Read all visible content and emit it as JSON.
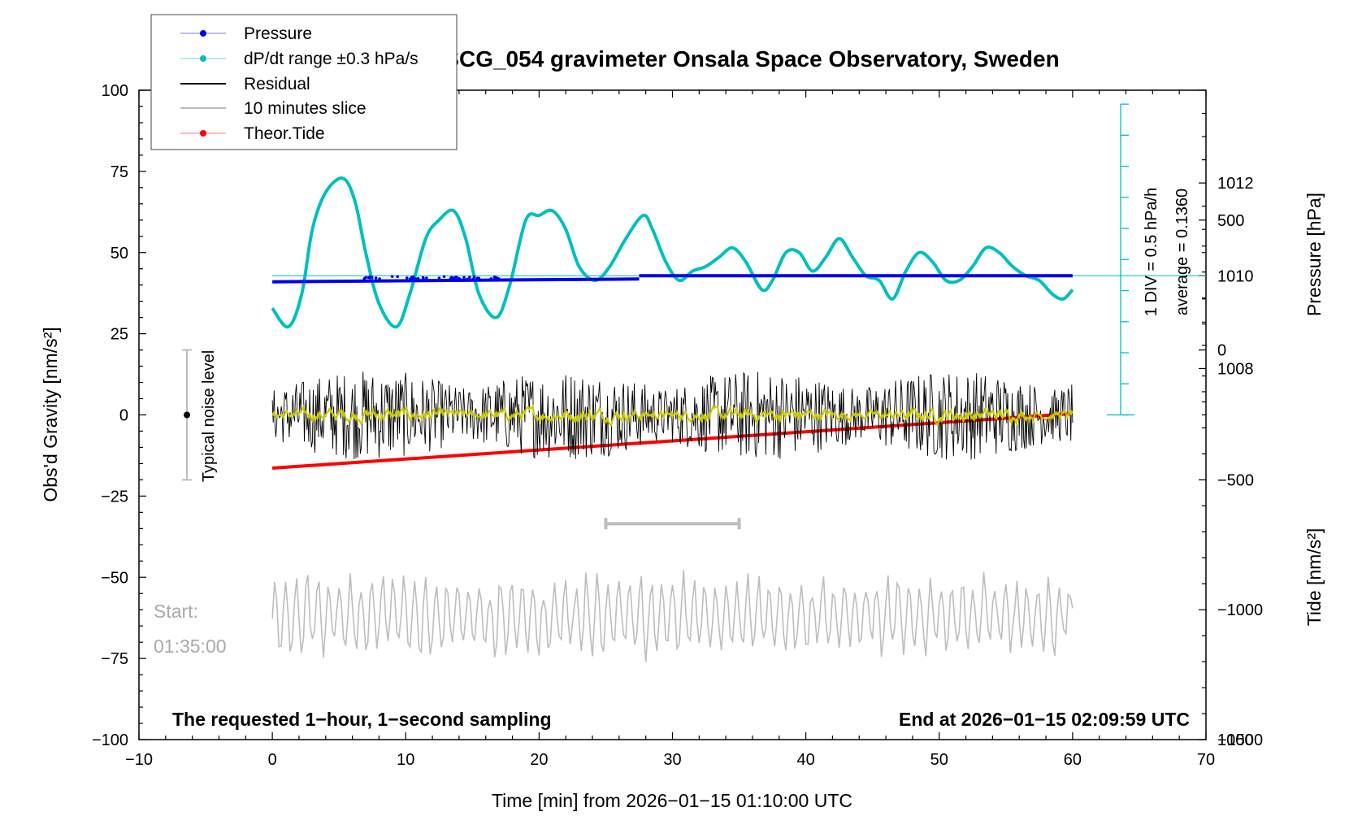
{
  "chart_data": {
    "type": "line",
    "title": "SCG_054 gravimeter Onsala Space Observatory, Sweden",
    "xlabel": "Time [min] from 2026−01−15 01:10:00 UTC",
    "ylabel_left": "Obs'd Gravity [nm/s²]",
    "ylabel_pressure": "Pressure [hPa]",
    "ylabel_tide": "Tide [nm/s²]",
    "xlim": [
      -10,
      70
    ],
    "ylim": [
      -100,
      100
    ],
    "pressure_range": [
      1000,
      1014
    ],
    "tide_range": [
      -1500,
      1000
    ],
    "x_ticks": [
      "−10",
      "0",
      "10",
      "20",
      "30",
      "40",
      "50",
      "60",
      "70"
    ],
    "y_ticks": [
      "100",
      "75",
      "50",
      "25",
      "0",
      "−25",
      "−50",
      "−75",
      "−100"
    ],
    "pressure_ticks": [
      "1012",
      "1010",
      "1008",
      "1000"
    ],
    "tide_ticks": [
      "500",
      "0",
      "−500",
      "−1000",
      "−1500"
    ],
    "legend": {
      "position": "top-left",
      "entries": [
        {
          "label": "Pressure",
          "color": "#0000ee",
          "marker": true
        },
        {
          "label": "dP/dt range ±0.3 hPa/s",
          "color": "#00bfbf",
          "marker": true
        },
        {
          "label": "Residual",
          "color": "#000000",
          "marker": false
        },
        {
          "label": "10 minutes slice",
          "color": "#bdbdbd",
          "marker": false
        },
        {
          "label": "Theor.Tide",
          "color": "#ff0000",
          "marker": true
        }
      ]
    },
    "annotations": {
      "noise_label": "Typical noise level",
      "noise_range": [
        -20,
        20
      ],
      "slice_window": [
        25,
        35
      ],
      "start_label": "Start:",
      "start_time": "01:35:00",
      "div_label": "1 DIV = 0.5 hPa/h",
      "average_label": "average = 0.1360",
      "footer_left": "The requested 1−hour, 1−second sampling",
      "footer_right": "End at 2026−01−15 02:09:59 UTC"
    },
    "series": [
      {
        "name": "dP/dt",
        "color": "#00bfbf",
        "x": [
          0,
          1.2,
          2.2,
          3,
          4,
          5.3,
          6.2,
          7,
          8,
          9.3,
          10.3,
          11.5,
          12.5,
          13.6,
          14.5,
          15.5,
          16.8,
          17.8,
          19,
          20,
          21,
          22,
          23,
          24.2,
          25.3,
          26.5,
          27.8,
          28.5,
          29.5,
          30.5,
          31.5,
          32.5,
          33.5,
          34.5,
          35.5,
          36.7,
          37.5,
          38.5,
          39.5,
          40.5,
          41.5,
          42.5,
          43.5,
          44.5,
          45.5,
          46.5,
          47.5,
          48.5,
          49.5,
          50.5,
          51.5,
          52.5,
          53.5,
          54.5,
          55.5,
          56.5,
          57.5,
          58.5,
          59.3,
          60
        ],
        "y": [
          1009.3,
          1008.9,
          1009.6,
          1011.0,
          1011.8,
          1012.1,
          1011.6,
          1010.5,
          1009.4,
          1008.9,
          1009.6,
          1010.8,
          1011.2,
          1011.4,
          1010.8,
          1009.6,
          1009.1,
          1009.8,
          1011.2,
          1011.3,
          1011.4,
          1011.0,
          1010.2,
          1009.9,
          1010.2,
          1010.8,
          1011.3,
          1011.0,
          1010.3,
          1009.9,
          1010.1,
          1010.2,
          1010.4,
          1010.6,
          1010.3,
          1009.7,
          1009.9,
          1010.5,
          1010.5,
          1010.1,
          1010.4,
          1010.8,
          1010.4,
          1010.0,
          1009.9,
          1009.5,
          1010.1,
          1010.5,
          1010.3,
          1009.9,
          1009.9,
          1010.2,
          1010.6,
          1010.5,
          1010.2,
          1010.0,
          1009.9,
          1009.6,
          1009.5,
          1009.7
        ]
      },
      {
        "name": "Pressure",
        "color": "#0000ee",
        "x": [
          0,
          27.5,
          27.5,
          60
        ],
        "y": [
          1009.87,
          1009.93,
          1010.0,
          1010.0
        ]
      },
      {
        "name": "Theor.Tide",
        "color": "#ff0000",
        "x": [
          0,
          10,
          20,
          30,
          40,
          50,
          60
        ],
        "y": [
          -455,
          -420,
          -385,
          -350,
          -315,
          -280,
          -245
        ]
      },
      {
        "name": "Residual",
        "color": "#000000",
        "x_range": [
          0,
          60
        ],
        "typical_range": [
          -20,
          20
        ]
      },
      {
        "name": "10 minutes slice",
        "color": "#bdbdbd",
        "x_range": [
          0,
          60
        ],
        "window": [
          25,
          35
        ]
      }
    ]
  }
}
